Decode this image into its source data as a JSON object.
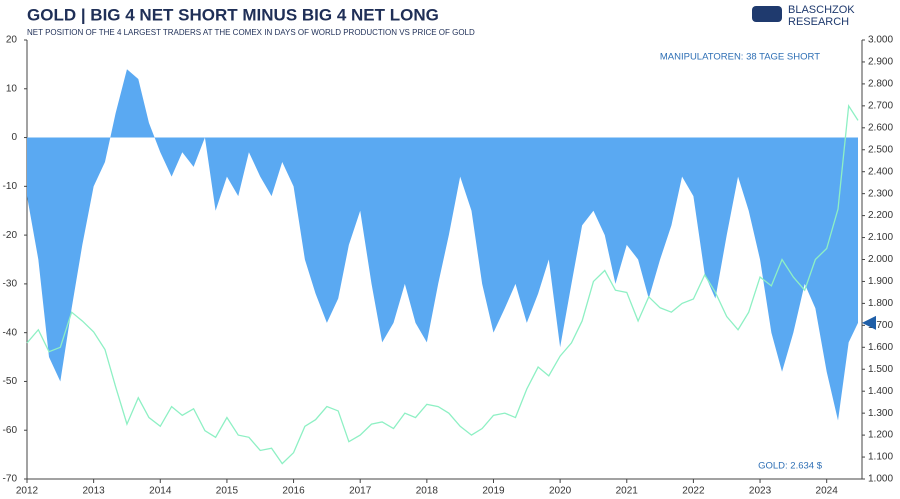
{
  "chart_data": {
    "type": "area_line",
    "title": "GOLD | BIG 4 NET SHORT MINUS BIG 4 NET LONG",
    "subtitle": "NET POSITION OF THE 4 LARGEST TRADERS AT THE COMEX IN DAYS OF WORLD PRODUCTION VS PRICE OF GOLD",
    "annotations": [
      "MANIPULATOREN: 38 TAGE SHORT",
      "GOLD: 2.634 $"
    ],
    "logo": [
      "BLASCHZOK",
      "RESEARCH"
    ],
    "x": [
      2012.0,
      2012.17,
      2012.33,
      2012.5,
      2012.67,
      2012.83,
      2013.0,
      2013.17,
      2013.33,
      2013.5,
      2013.67,
      2013.83,
      2014.0,
      2014.17,
      2014.33,
      2014.5,
      2014.67,
      2014.83,
      2015.0,
      2015.17,
      2015.33,
      2015.5,
      2015.67,
      2015.83,
      2016.0,
      2016.17,
      2016.33,
      2016.5,
      2016.67,
      2016.83,
      2017.0,
      2017.17,
      2017.33,
      2017.5,
      2017.67,
      2017.83,
      2018.0,
      2018.17,
      2018.33,
      2018.5,
      2018.67,
      2018.83,
      2019.0,
      2019.17,
      2019.33,
      2019.5,
      2019.67,
      2019.83,
      2020.0,
      2020.17,
      2020.33,
      2020.5,
      2020.67,
      2020.83,
      2021.0,
      2021.17,
      2021.33,
      2021.5,
      2021.67,
      2021.83,
      2022.0,
      2022.17,
      2022.33,
      2022.5,
      2022.67,
      2022.83,
      2023.0,
      2023.17,
      2023.33,
      2023.5,
      2023.67,
      2023.83,
      2024.0,
      2024.17,
      2024.33,
      2024.47
    ],
    "series": [
      {
        "color": "#5aa9f2",
        "values": [
          -12,
          -25,
          -45,
          -50,
          -35,
          -22,
          -10,
          -5,
          5,
          14,
          12,
          3,
          -3,
          -8,
          -3,
          -6,
          0,
          -15,
          -8,
          -12,
          -3,
          -8,
          -12,
          -5,
          -10,
          -25,
          -32,
          -38,
          -33,
          -22,
          -15,
          -30,
          -42,
          -38,
          -30,
          -38,
          -42,
          -30,
          -20,
          -8,
          -15,
          -30,
          -40,
          -35,
          -30,
          -38,
          -32,
          -25,
          -43,
          -30,
          -18,
          -15,
          -20,
          -30,
          -22,
          -25,
          -33,
          -25,
          -18,
          -8,
          -12,
          -28,
          -33,
          -20,
          -8,
          -15,
          -25,
          -40,
          -48,
          -40,
          -30,
          -35,
          -48,
          -58,
          -42,
          -38
        ]
      },
      {
        "color": "#8ef0c4",
        "axis": "y2",
        "values": [
          1620,
          1680,
          1580,
          1600,
          1760,
          1720,
          1670,
          1590,
          1420,
          1250,
          1370,
          1280,
          1240,
          1330,
          1290,
          1320,
          1220,
          1190,
          1280,
          1200,
          1190,
          1130,
          1140,
          1070,
          1120,
          1240,
          1270,
          1330,
          1310,
          1170,
          1200,
          1250,
          1260,
          1230,
          1300,
          1280,
          1340,
          1330,
          1300,
          1240,
          1200,
          1230,
          1290,
          1300,
          1280,
          1410,
          1510,
          1470,
          1560,
          1620,
          1720,
          1900,
          1950,
          1860,
          1850,
          1720,
          1830,
          1780,
          1760,
          1800,
          1820,
          1930,
          1850,
          1740,
          1680,
          1760,
          1920,
          1880,
          2000,
          1920,
          1860,
          2000,
          2050,
          2230,
          2700,
          2634
        ]
      }
    ],
    "xlim": [
      2012,
      2024.5
    ],
    "xticks": [
      2012,
      2013,
      2014,
      2015,
      2016,
      2017,
      2018,
      2019,
      2020,
      2021,
      2022,
      2023,
      2024
    ],
    "ylim": [
      -70,
      20
    ],
    "yticks": [
      20,
      10,
      0,
      -10,
      -20,
      -30,
      -40,
      -50,
      -60,
      -70
    ],
    "y2lim": [
      1000,
      3000
    ],
    "y2ticks": [
      {
        "value": 3000,
        "label": "3.000"
      },
      {
        "value": 2900,
        "label": "2.900"
      },
      {
        "value": 2800,
        "label": "2.800"
      },
      {
        "value": 2700,
        "label": "2.700"
      },
      {
        "value": 2600,
        "label": "2.600"
      },
      {
        "value": 2500,
        "label": "2.500"
      },
      {
        "value": 2400,
        "label": "2.400"
      },
      {
        "value": 2300,
        "label": "2.300"
      },
      {
        "value": 2200,
        "label": "2.200"
      },
      {
        "value": 2100,
        "label": "2.100"
      },
      {
        "value": 2000,
        "label": "2.000"
      },
      {
        "value": 1900,
        "label": "1.900"
      },
      {
        "value": 1800,
        "label": "1.800"
      },
      {
        "value": 1700,
        "label": "1.700"
      },
      {
        "value": 1600,
        "label": "1.600"
      },
      {
        "value": 1500,
        "label": "1.500"
      },
      {
        "value": 1400,
        "label": "1.400"
      },
      {
        "value": 1300,
        "label": "1.300"
      },
      {
        "value": 1200,
        "label": "1.200"
      },
      {
        "value": 1100,
        "label": "1.100"
      },
      {
        "value": 1000,
        "label": "1.000"
      }
    ],
    "grid": false
  }
}
